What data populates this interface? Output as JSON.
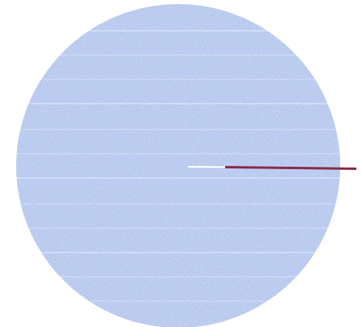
{
  "diagram": {
    "shapes": [
      {
        "kind": "circle",
        "name": "disc"
      },
      {
        "kind": "line",
        "name": "radius-line"
      }
    ],
    "colors": {
      "disc_fill": "#b4c6ee",
      "disc_speckle": "#ffffff",
      "scan_line": "#ffffff",
      "radius_line": "#8b2f4e",
      "background": "#ffffff"
    }
  }
}
